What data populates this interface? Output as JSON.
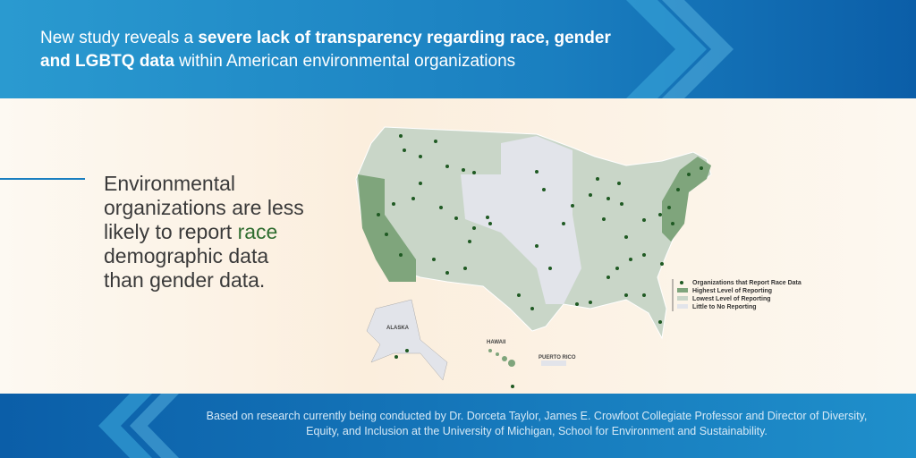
{
  "header": {
    "text_before": "New study reveals a ",
    "text_bold": "severe lack of transparency regarding race, gender and LGBTQ data",
    "text_after": " within American environmental organizations"
  },
  "statement": {
    "text_before": "Environmental organizations are less likely to report ",
    "text_highlight": "race",
    "text_after": " demographic data than gender data."
  },
  "map": {
    "labels": [
      "ALASKA",
      "HAWAII",
      "PUERTO RICO"
    ],
    "legend": [
      "Organizations that Report Race Data",
      "Highest Level of Reporting",
      "Lowest Level of Reporting",
      "Little to No Reporting"
    ]
  },
  "footer": {
    "text": "Based on research currently being conducted by Dr. Dorceta Taylor, James E. Crowfoot Collegiate Professor and Director of Diversity, Equity, and Inclusion at the University of Michigan, School for Environment and Sustainability."
  }
}
